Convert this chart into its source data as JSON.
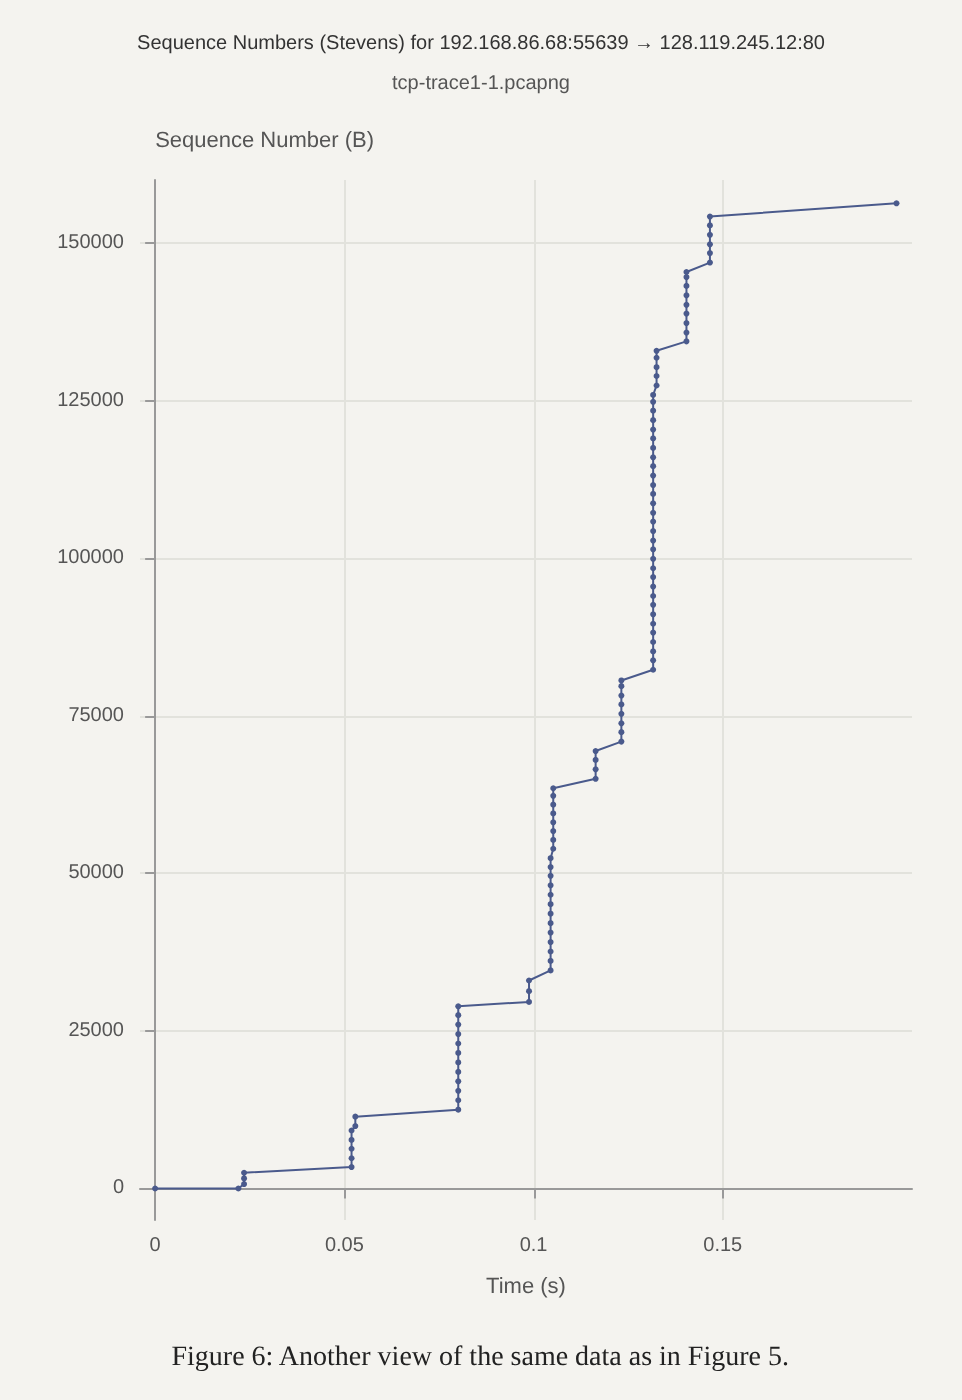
{
  "chart_data": {
    "type": "line",
    "title": "Sequence Numbers (Stevens) for 192.168.86.68:55639 → 128.119.245.12:80",
    "subtitle": "tcp-trace1-1.pcapng",
    "xlabel": "Time (s)",
    "ylabel": "Sequence Number (B)",
    "annotations": [
      "Figure 6: Another view of the same data as in Figure 5."
    ],
    "xlim": [
      -0.004,
      0.2
    ],
    "xticks": [
      0,
      0.05,
      0.1,
      0.15
    ],
    "ylim": [
      -5000,
      160000
    ],
    "yticks": [
      0,
      25000,
      50000,
      75000,
      100000,
      125000,
      150000
    ],
    "grid": true,
    "marker": "circle",
    "line_style": "solid",
    "series": [
      {
        "color": "#4a5a8c",
        "x": [
          0,
          0.022,
          0.0235,
          0.0235,
          0.0235,
          0.0519,
          0.0519,
          0.0519,
          0.0519,
          0.0519,
          0.0529,
          0.0529,
          0.0801,
          0.0801,
          0.0801,
          0.0801,
          0.0801,
          0.0801,
          0.0801,
          0.0801,
          0.0801,
          0.0801,
          0.0801,
          0.0801,
          0.0988,
          0.0988,
          0.0988,
          0.1045,
          0.1045,
          0.1045,
          0.1045,
          0.1045,
          0.1045,
          0.1045,
          0.1045,
          0.1045,
          0.1045,
          0.1045,
          0.1045,
          0.1045,
          0.1052,
          0.1052,
          0.1052,
          0.1052,
          0.1052,
          0.1052,
          0.1052,
          0.1052,
          0.1164,
          0.1164,
          0.1164,
          0.1164,
          0.1232,
          0.1232,
          0.1232,
          0.1232,
          0.1232,
          0.1232,
          0.1232,
          0.1232,
          0.1316,
          0.1316,
          0.1316,
          0.1316,
          0.1316,
          0.1316,
          0.1316,
          0.1316,
          0.1316,
          0.1316,
          0.1316,
          0.1316,
          0.1316,
          0.1316,
          0.1316,
          0.1316,
          0.1316,
          0.1316,
          0.1316,
          0.1316,
          0.1316,
          0.1316,
          0.1316,
          0.1316,
          0.1316,
          0.1316,
          0.1316,
          0.1316,
          0.1316,
          0.1316,
          0.1316,
          0.1325,
          0.1325,
          0.1325,
          0.1325,
          0.1325,
          0.1404,
          0.1404,
          0.1404,
          0.1404,
          0.1404,
          0.1404,
          0.1404,
          0.1404,
          0.1404,
          0.1466,
          0.1466,
          0.1466,
          0.1466,
          0.1466,
          0.1466,
          0.1959
        ],
        "values": [
          0,
          0,
          700,
          1600,
          2500,
          3400,
          4800,
          6300,
          7700,
          9200,
          9900,
          11400,
          12500,
          14000,
          15500,
          17000,
          18500,
          20000,
          21500,
          23000,
          24500,
          26000,
          27500,
          28900,
          29600,
          31300,
          33000,
          34600,
          36100,
          37600,
          39100,
          40600,
          42100,
          43600,
          45100,
          46600,
          48100,
          49600,
          51000,
          52400,
          53900,
          55300,
          56700,
          58100,
          59500,
          60900,
          62300,
          63500,
          65000,
          66500,
          68000,
          69400,
          70900,
          72400,
          73800,
          75300,
          76800,
          78200,
          79700,
          80600,
          82300,
          83800,
          85200,
          86700,
          88200,
          89600,
          91100,
          92600,
          94000,
          95500,
          97000,
          98400,
          99900,
          101400,
          102800,
          104300,
          105800,
          107200,
          108700,
          110200,
          111600,
          113100,
          114600,
          116000,
          117500,
          119000,
          120400,
          121900,
          123400,
          124800,
          125900,
          127400,
          128900,
          130300,
          131800,
          132900,
          134400,
          135800,
          137300,
          138800,
          140200,
          141700,
          143200,
          144600,
          145400,
          146900,
          148400,
          149800,
          151300,
          152800,
          154200,
          156300
        ]
      }
    ]
  }
}
